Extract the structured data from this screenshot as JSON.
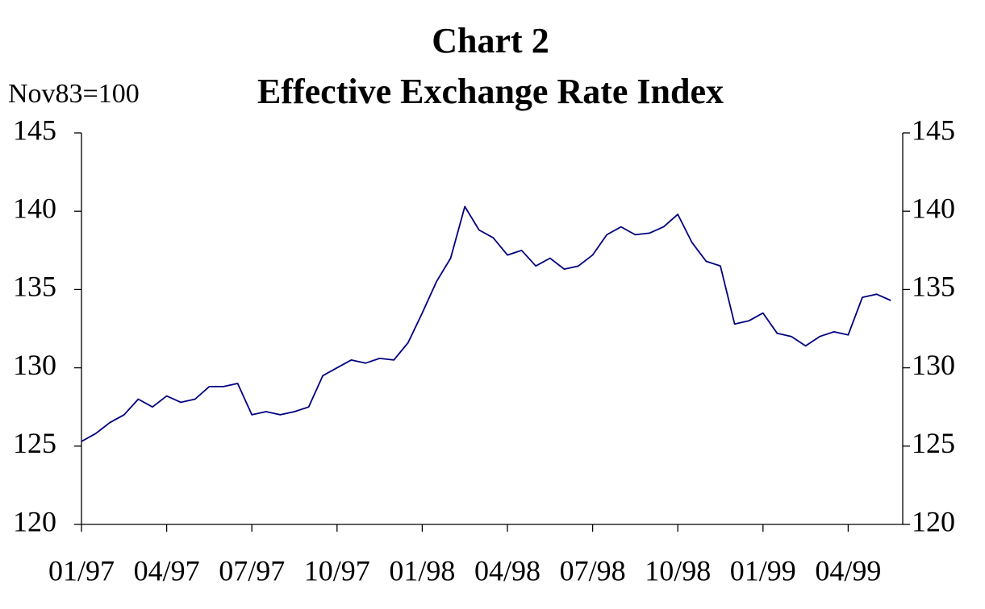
{
  "chart_data": {
    "type": "line",
    "title": "Chart 2",
    "subtitle": "Effective Exchange Rate Index",
    "ylabel": "Nov83=100",
    "categories": [
      "01/97",
      null,
      null,
      null,
      null,
      null,
      "04/97",
      null,
      null,
      null,
      null,
      null,
      "07/97",
      null,
      null,
      null,
      null,
      null,
      "10/97",
      null,
      null,
      null,
      null,
      null,
      "01/98",
      null,
      null,
      null,
      null,
      null,
      "04/98",
      null,
      null,
      null,
      null,
      null,
      "07/98",
      null,
      null,
      null,
      null,
      null,
      "10/98",
      null,
      null,
      null,
      null,
      null,
      "01/99",
      null,
      null,
      null,
      null,
      null,
      "04/99",
      null,
      null,
      null
    ],
    "series": [
      {
        "name": "Effective Exchange Rate Index",
        "color": "#000080",
        "values": [
          125.3,
          125.8,
          126.5,
          127.0,
          128.0,
          127.5,
          128.2,
          127.8,
          128.0,
          128.8,
          128.8,
          129.0,
          127.0,
          127.2,
          127.0,
          127.2,
          127.5,
          129.5,
          130.0,
          130.5,
          130.3,
          130.6,
          130.5,
          131.6,
          133.5,
          135.5,
          137.0,
          140.3,
          138.8,
          138.3,
          137.2,
          137.5,
          136.5,
          137.0,
          136.3,
          136.5,
          137.2,
          138.5,
          139.0,
          138.5,
          138.6,
          139.0,
          139.8,
          138.0,
          136.8,
          136.5,
          132.8,
          133.0,
          133.5,
          132.2,
          132.0,
          131.4,
          132.0,
          132.3,
          132.1,
          134.5,
          134.7,
          134.3
        ]
      }
    ],
    "ylim": [
      120,
      145
    ],
    "yticks": [
      120,
      125,
      130,
      135,
      140,
      145
    ],
    "y2lim": [
      120,
      145
    ],
    "y2ticks": [
      120,
      125,
      130,
      135,
      140,
      145
    ],
    "grid": false
  }
}
